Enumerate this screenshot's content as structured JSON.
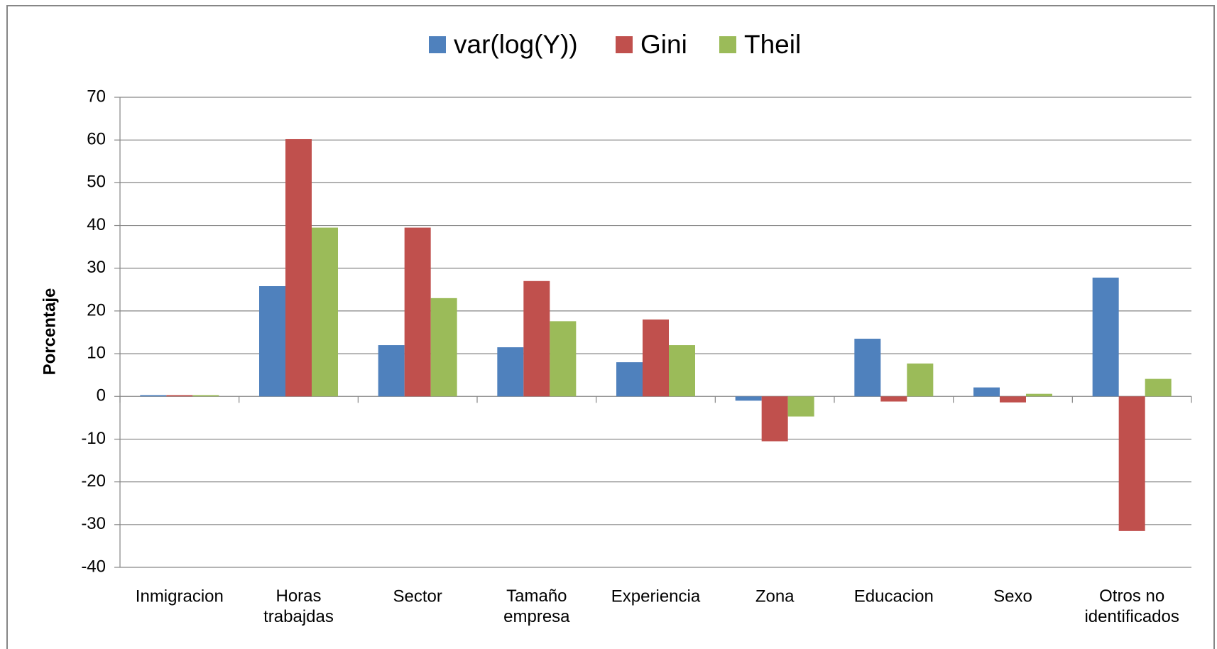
{
  "chart_data": {
    "type": "bar",
    "y_label": "Porcentaje",
    "categories": [
      "Inmigracion",
      "Horas\ntrabajdas",
      "Sector",
      "Tamaño\nempresa",
      "Experiencia",
      "Zona",
      "Educacion",
      "Sexo",
      "Otros no\nidentificados"
    ],
    "series": [
      {
        "name": "var(log(Y))",
        "color": "#4f81bd",
        "values": [
          0.3,
          25.8,
          12,
          11.5,
          8,
          -1,
          13.5,
          2.1,
          27.8
        ]
      },
      {
        "name": "Gini",
        "color": "#c0504d",
        "values": [
          0.3,
          60.2,
          39.5,
          27,
          18,
          -10.5,
          -1.2,
          -1.4,
          -31.5
        ]
      },
      {
        "name": "Theil",
        "color": "#9bbb59",
        "values": [
          0.3,
          39.5,
          23,
          17.6,
          12,
          -4.7,
          7.7,
          0.6,
          4.1
        ]
      }
    ],
    "ylim": [
      -40,
      70
    ],
    "yticks": [
      -40,
      -30,
      -20,
      -10,
      0,
      10,
      20,
      30,
      40,
      50,
      60,
      70
    ],
    "grid": true,
    "legend": "top"
  }
}
